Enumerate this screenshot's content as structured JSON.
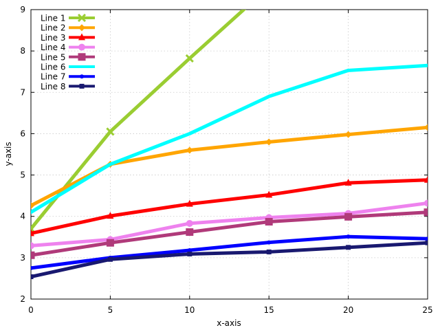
{
  "chart_data": {
    "type": "line",
    "title": "",
    "xlabel": "x-axis",
    "ylabel": "y-axis",
    "xlim": [
      0,
      25
    ],
    "ylim": [
      2,
      9
    ],
    "xticks": [
      "0",
      "5",
      "10",
      "15",
      "20",
      "25"
    ],
    "yticks": [
      "2",
      "3",
      "4",
      "5",
      "6",
      "7",
      "8",
      "9"
    ],
    "grid": true,
    "legend_position": "top-left",
    "x": [
      0,
      5,
      10,
      15,
      20,
      25
    ],
    "series": [
      {
        "name": "Line 1",
        "color": "#9ACD32",
        "marker": "x",
        "values": [
          3.7,
          6.05,
          7.82,
          9.55,
          null,
          null
        ]
      },
      {
        "name": "Line 2",
        "color": "#FFA500",
        "marker": "diamond",
        "values": [
          4.26,
          5.26,
          5.6,
          5.8,
          5.98,
          6.15
        ]
      },
      {
        "name": "Line 3",
        "color": "#FF0000",
        "marker": "triangle",
        "values": [
          3.59,
          4.01,
          4.3,
          4.52,
          4.81,
          4.88
        ]
      },
      {
        "name": "Line 4",
        "color": "#EE82EE",
        "marker": "circle",
        "values": [
          3.29,
          3.44,
          3.83,
          3.97,
          4.07,
          4.32
        ]
      },
      {
        "name": "Line 5",
        "color": "#B03A7A",
        "marker": "square",
        "values": [
          3.06,
          3.36,
          3.62,
          3.87,
          3.99,
          4.1
        ]
      },
      {
        "name": "Line 6",
        "color": "#00FFFF",
        "marker": "none",
        "values": [
          4.1,
          5.26,
          6.0,
          6.9,
          7.53,
          7.65
        ]
      },
      {
        "name": "Line 7",
        "color": "#0000FF",
        "marker": "dot",
        "values": [
          2.75,
          3.0,
          3.18,
          3.37,
          3.51,
          3.46
        ]
      },
      {
        "name": "Line 8",
        "color": "#191970",
        "marker": "smallsquare",
        "values": [
          2.54,
          2.96,
          3.09,
          3.14,
          3.25,
          3.36
        ]
      }
    ]
  }
}
